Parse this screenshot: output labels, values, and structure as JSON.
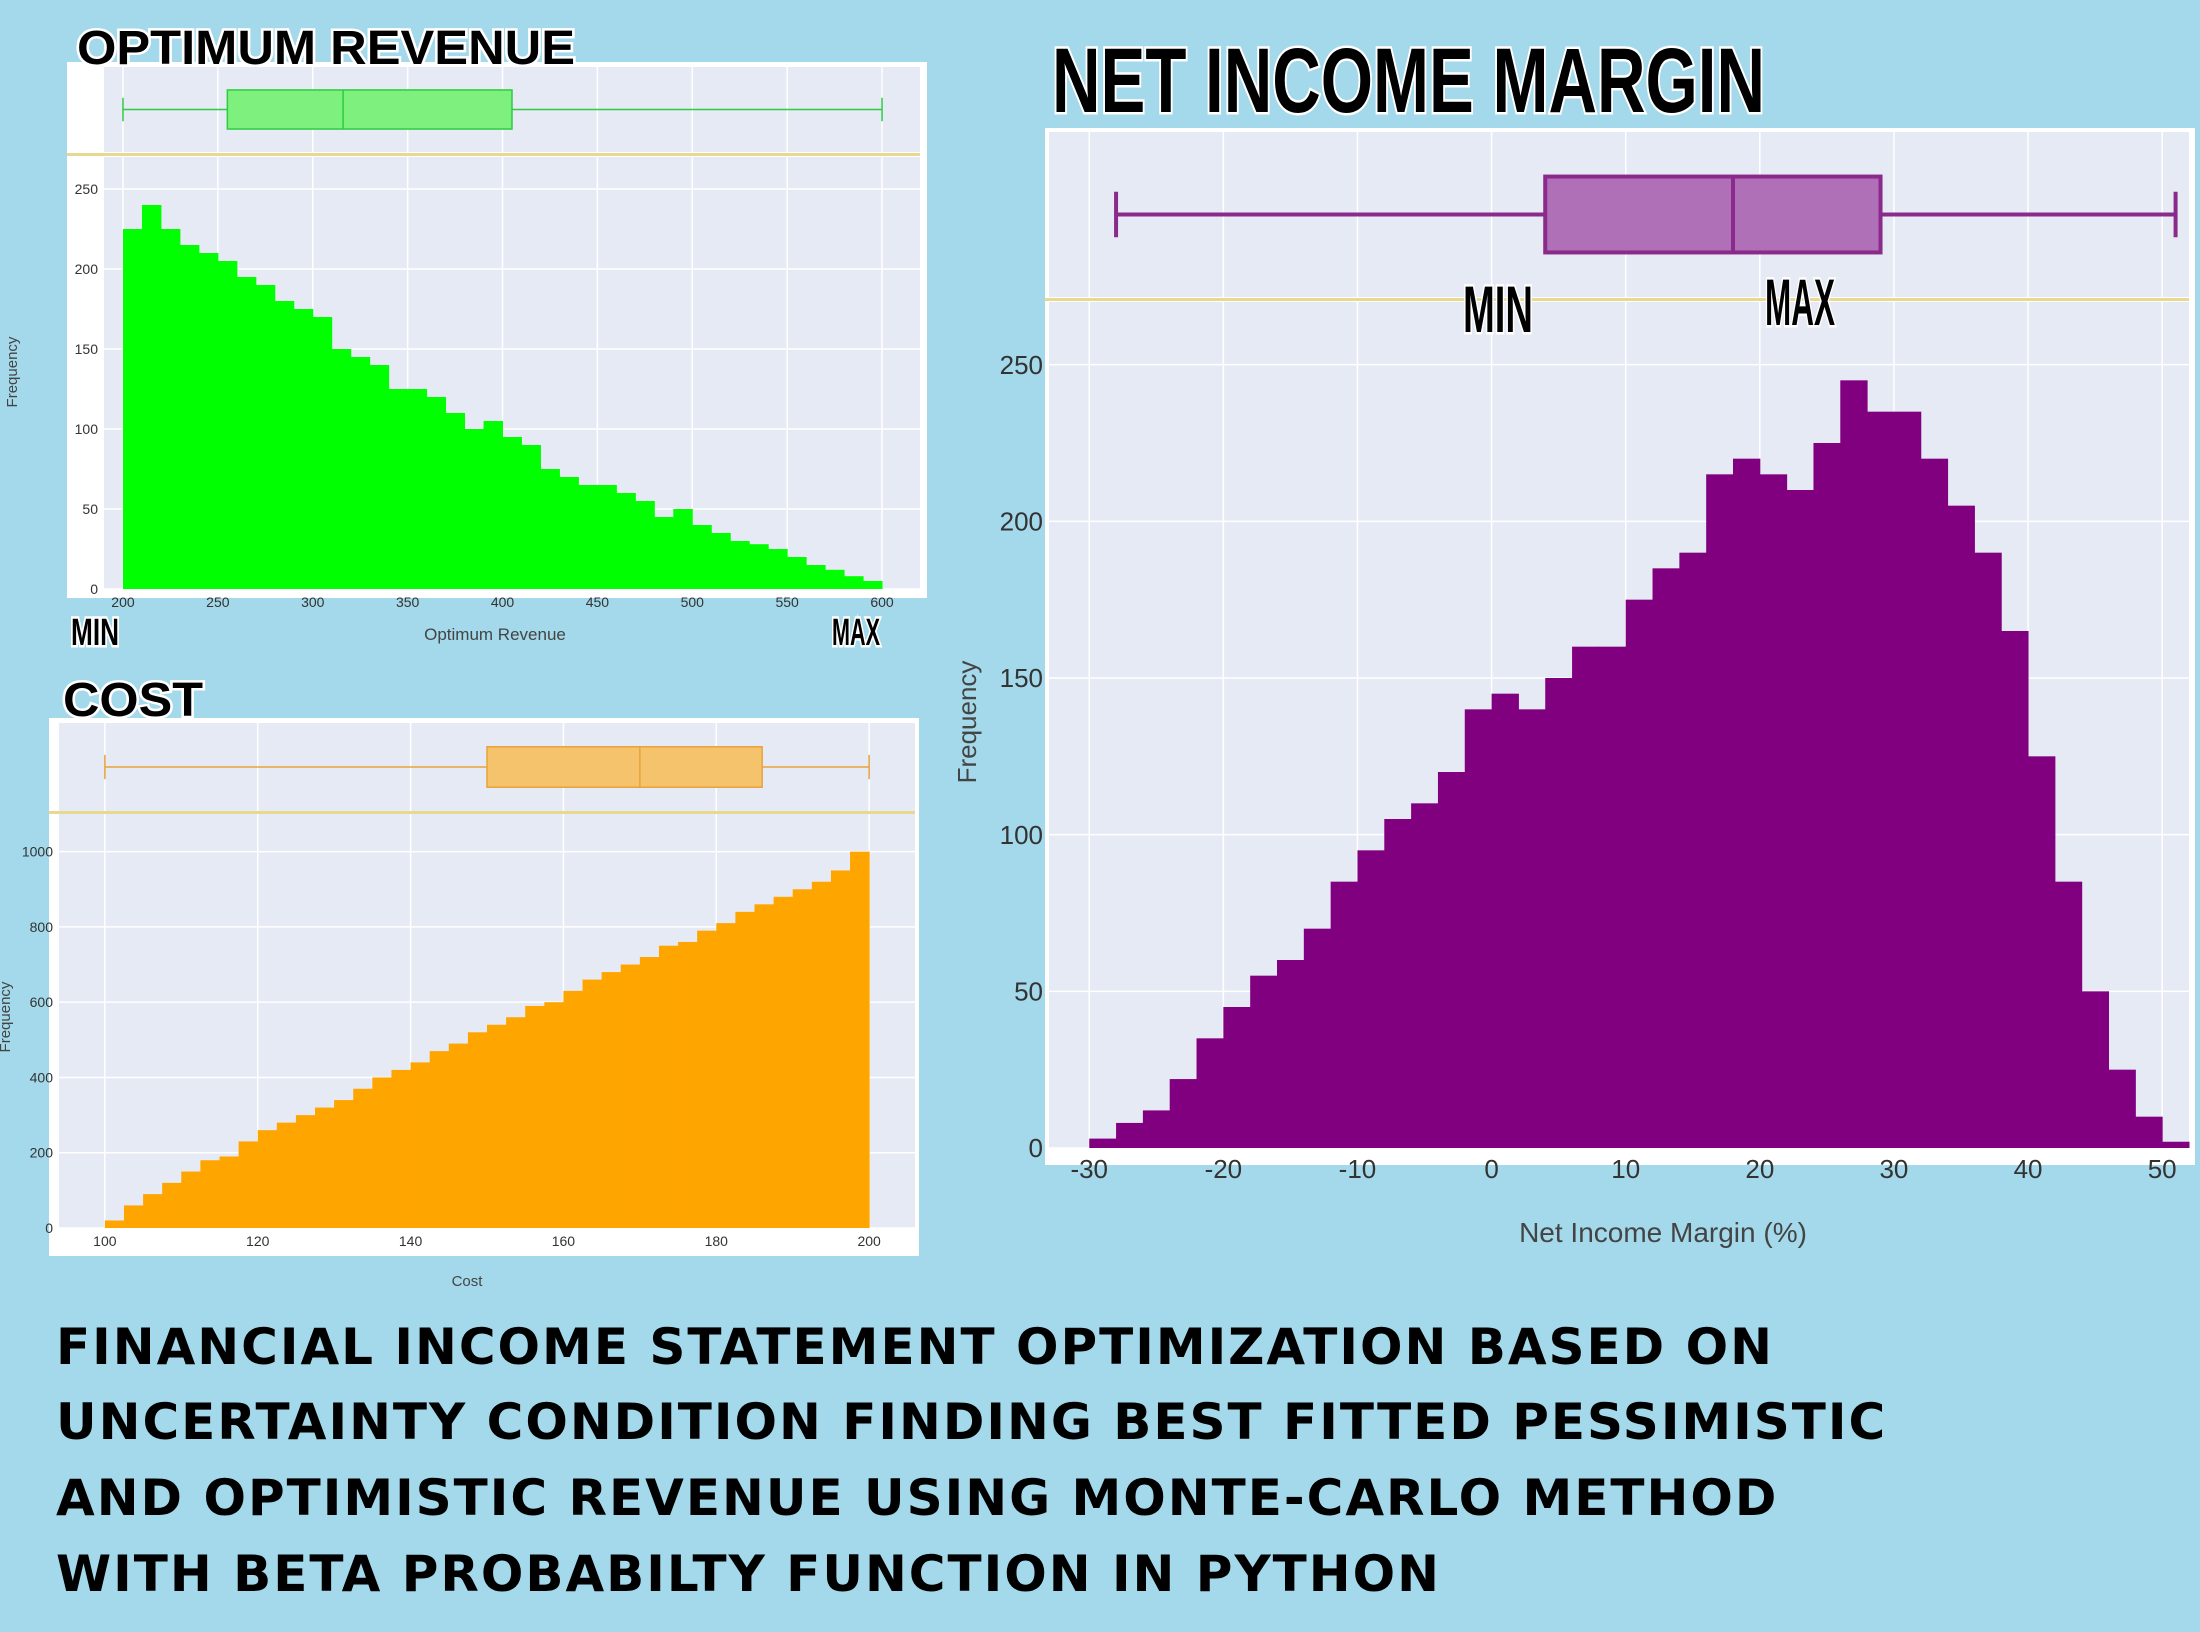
{
  "chart_data": [
    {
      "type": "histogram",
      "title": "OPTIMUM REVENUE",
      "x_label": "Optimum Revenue",
      "y_label": "Frequency",
      "annotations": [
        "MIN",
        "MAX"
      ],
      "bins": [
        200,
        210,
        220,
        230,
        240,
        250,
        260,
        270,
        280,
        290,
        300,
        310,
        320,
        330,
        340,
        350,
        360,
        370,
        380,
        390,
        400,
        410,
        420,
        430,
        440,
        450,
        460,
        470,
        480,
        490,
        500,
        510,
        520,
        530,
        540,
        550,
        560,
        570,
        580,
        590,
        600
      ],
      "values": [
        225,
        240,
        225,
        215,
        210,
        205,
        195,
        190,
        180,
        175,
        170,
        150,
        145,
        140,
        125,
        125,
        120,
        110,
        100,
        105,
        95,
        90,
        75,
        70,
        65,
        65,
        60,
        55,
        45,
        50,
        40,
        35,
        30,
        28,
        25,
        20,
        15,
        12,
        8,
        5
      ],
      "color": "#00ff00",
      "xlim": [
        190,
        620
      ],
      "ylim": [
        0,
        270
      ],
      "xticks": [
        200,
        250,
        300,
        350,
        400,
        450,
        500,
        550,
        600
      ],
      "yticks": [
        0,
        50,
        100,
        150,
        200,
        250
      ],
      "grid": true,
      "box": {
        "min": 200,
        "q1": 255,
        "median": 316,
        "q3": 405,
        "max": 600
      },
      "box_color": "#7ef07e"
    },
    {
      "type": "histogram",
      "title": "COST",
      "x_label": "Cost",
      "y_label": "Frequency",
      "bins": [
        100,
        102.5,
        105,
        107.5,
        110,
        112.5,
        115,
        117.5,
        120,
        122.5,
        125,
        127.5,
        130,
        132.5,
        135,
        137.5,
        140,
        142.5,
        145,
        147.5,
        150,
        152.5,
        155,
        157.5,
        160,
        162.5,
        165,
        167.5,
        170,
        172.5,
        175,
        177.5,
        180,
        182.5,
        185,
        187.5,
        190,
        192.5,
        195,
        197.5,
        200
      ],
      "values": [
        20,
        60,
        90,
        120,
        150,
        180,
        190,
        230,
        260,
        280,
        300,
        320,
        340,
        370,
        400,
        420,
        440,
        470,
        490,
        520,
        540,
        560,
        590,
        600,
        630,
        660,
        680,
        700,
        720,
        750,
        760,
        790,
        810,
        840,
        860,
        880,
        900,
        920,
        950,
        1000
      ],
      "color": "#ffa500",
      "xlim": [
        94,
        206
      ],
      "ylim": [
        0,
        1100
      ],
      "xticks": [
        100,
        120,
        140,
        160,
        180,
        200
      ],
      "yticks": [
        0,
        200,
        400,
        600,
        800,
        1000
      ],
      "grid": true,
      "box": {
        "min": 100,
        "q1": 150,
        "median": 170,
        "q3": 186,
        "max": 200
      },
      "box_color": "#f5c36b"
    },
    {
      "type": "histogram",
      "title": "NET INCOME MARGIN",
      "x_label": "Net Income Margin (%)",
      "y_label": "Frequency",
      "annotations": [
        "MIN",
        "MAX"
      ],
      "bins": [
        -30,
        -28,
        -26,
        -24,
        -22,
        -20,
        -18,
        -16,
        -14,
        -12,
        -10,
        -8,
        -6,
        -4,
        -2,
        0,
        2,
        4,
        6,
        8,
        10,
        12,
        14,
        16,
        18,
        20,
        22,
        24,
        26,
        28,
        30,
        32,
        34,
        36,
        38,
        40,
        42,
        44,
        46,
        48,
        50,
        52
      ],
      "values": [
        3,
        8,
        12,
        22,
        35,
        45,
        55,
        60,
        70,
        85,
        95,
        105,
        110,
        120,
        140,
        145,
        140,
        150,
        160,
        160,
        175,
        185,
        190,
        215,
        220,
        215,
        210,
        225,
        245,
        235,
        235,
        220,
        205,
        190,
        165,
        125,
        85,
        50,
        25,
        10,
        2
      ],
      "color": "#800080",
      "xlim": [
        -33,
        52
      ],
      "ylim": [
        0,
        270
      ],
      "xticks": [
        -30,
        -20,
        -10,
        0,
        10,
        20,
        30,
        40,
        50
      ],
      "yticks": [
        0,
        50,
        100,
        150,
        200,
        250
      ],
      "grid": true,
      "box": {
        "min": -28,
        "q1": 4,
        "median": 18,
        "q3": 29,
        "max": 51
      },
      "box_color": "#b070b8"
    }
  ],
  "caption": [
    "FINANCIAL INCOME STATEMENT OPTIMIZATION BASED ON",
    "UNCERTAINTY CONDITION FINDING BEST FITTED PESSIMISTIC",
    "AND OPTIMISTIC REVENUE USING MONTE-CARLO METHOD",
    "WITH BETA PROBABILTY FUNCTION IN PYTHON"
  ]
}
